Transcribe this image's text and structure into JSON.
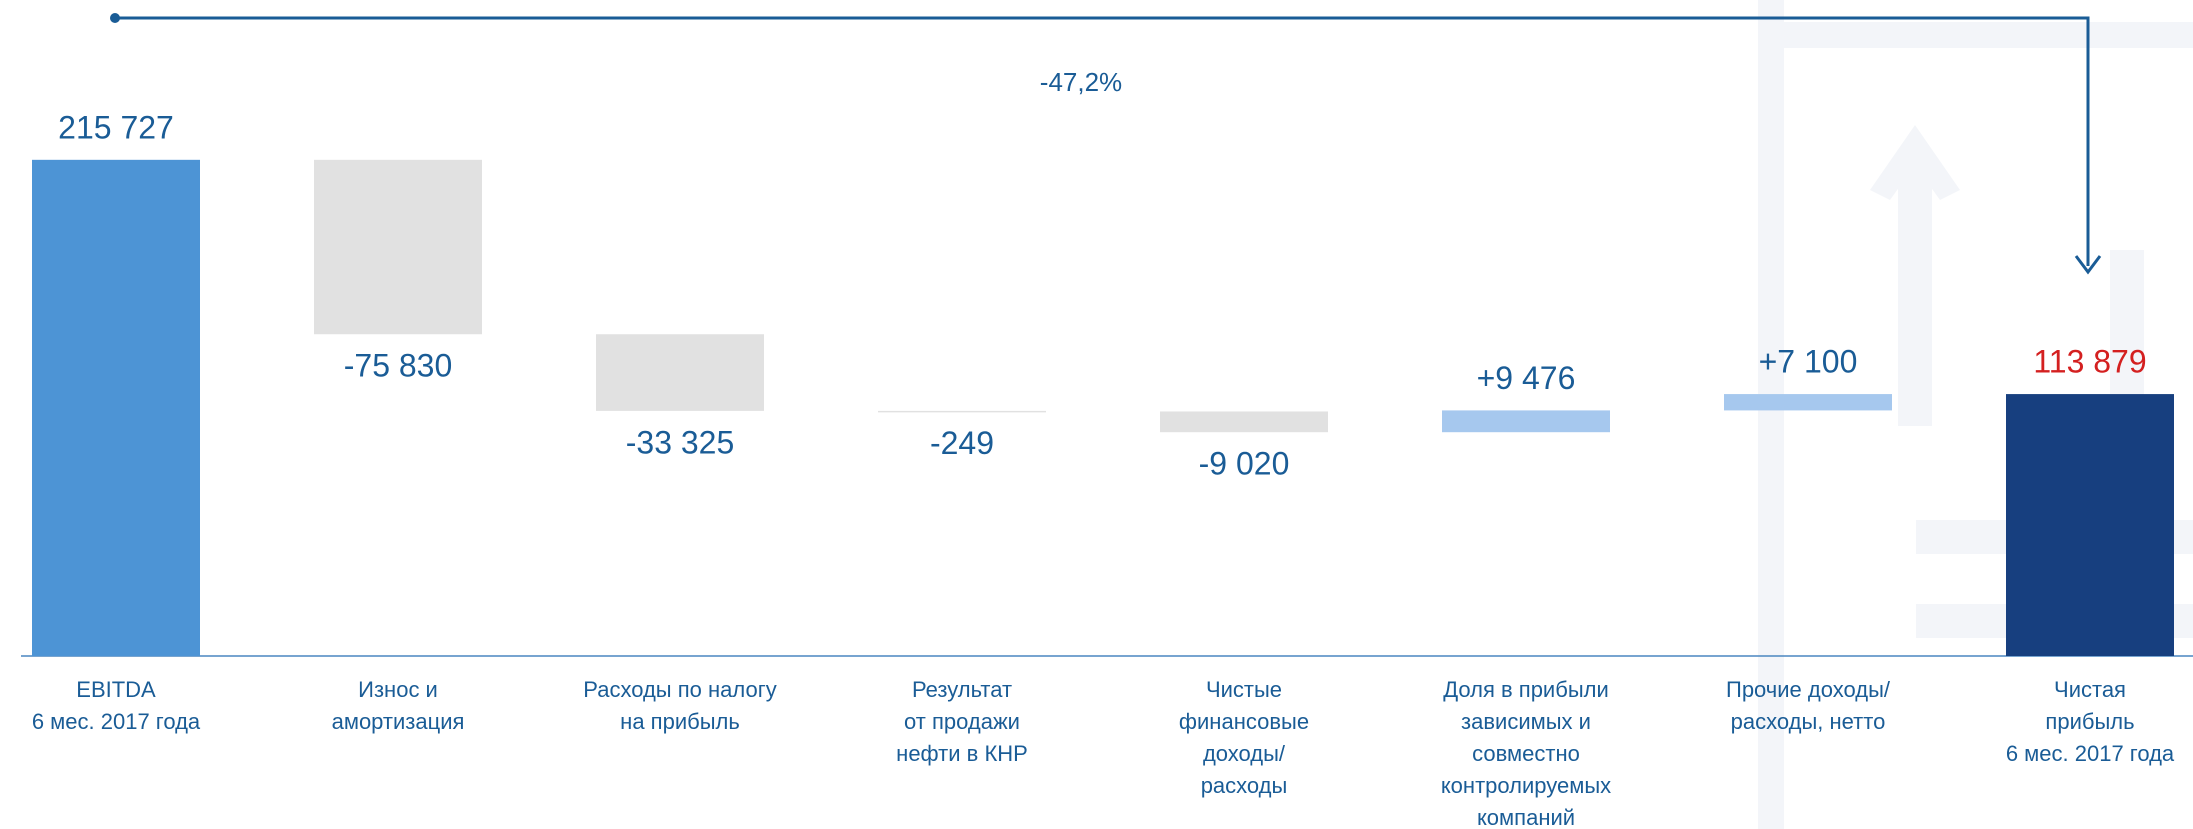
{
  "chart_data": {
    "type": "waterfall",
    "annotation": "-47,2%",
    "categories": [
      "EBITDA\n6 мес. 2017 года",
      "Износ и\nамортизация",
      "Расходы по налогу\nна прибыль",
      "Результат\nот продажи\nнефти в КНР",
      "Чистые\nфинансовые\nдоходы/\nрасходы",
      "Доля в прибыли\nзависимых и\nсовместно\nконтролируемых\nкомпаний",
      "Прочие доходы/\nрасходы, нетто",
      "Чистая\nприбыль\n6 мес. 2017 года"
    ],
    "values": [
      215727,
      -75830,
      -33325,
      -249,
      -9020,
      9476,
      7100,
      113879
    ],
    "value_labels": [
      "215 727",
      "-75 830",
      "-33 325",
      "-249",
      "-9 020",
      "+9 476",
      "+7 100",
      "113 879"
    ],
    "measure": [
      "total",
      "relative",
      "relative",
      "relative",
      "relative",
      "relative",
      "relative",
      "total"
    ],
    "colors": [
      "#4d94d5",
      "#e1e1e1",
      "#e1e1e1",
      "#e1e1e1",
      "#e1e1e1",
      "#a6c8ee",
      "#a6c8ee",
      "#173f7f"
    ],
    "label_colors": [
      "#1a5c96",
      "#1a5c96",
      "#1a5c96",
      "#1a5c96",
      "#1a5c96",
      "#1a5c96",
      "#1a5c96",
      "#d42020"
    ],
    "ylim": [
      0,
      250000
    ]
  }
}
